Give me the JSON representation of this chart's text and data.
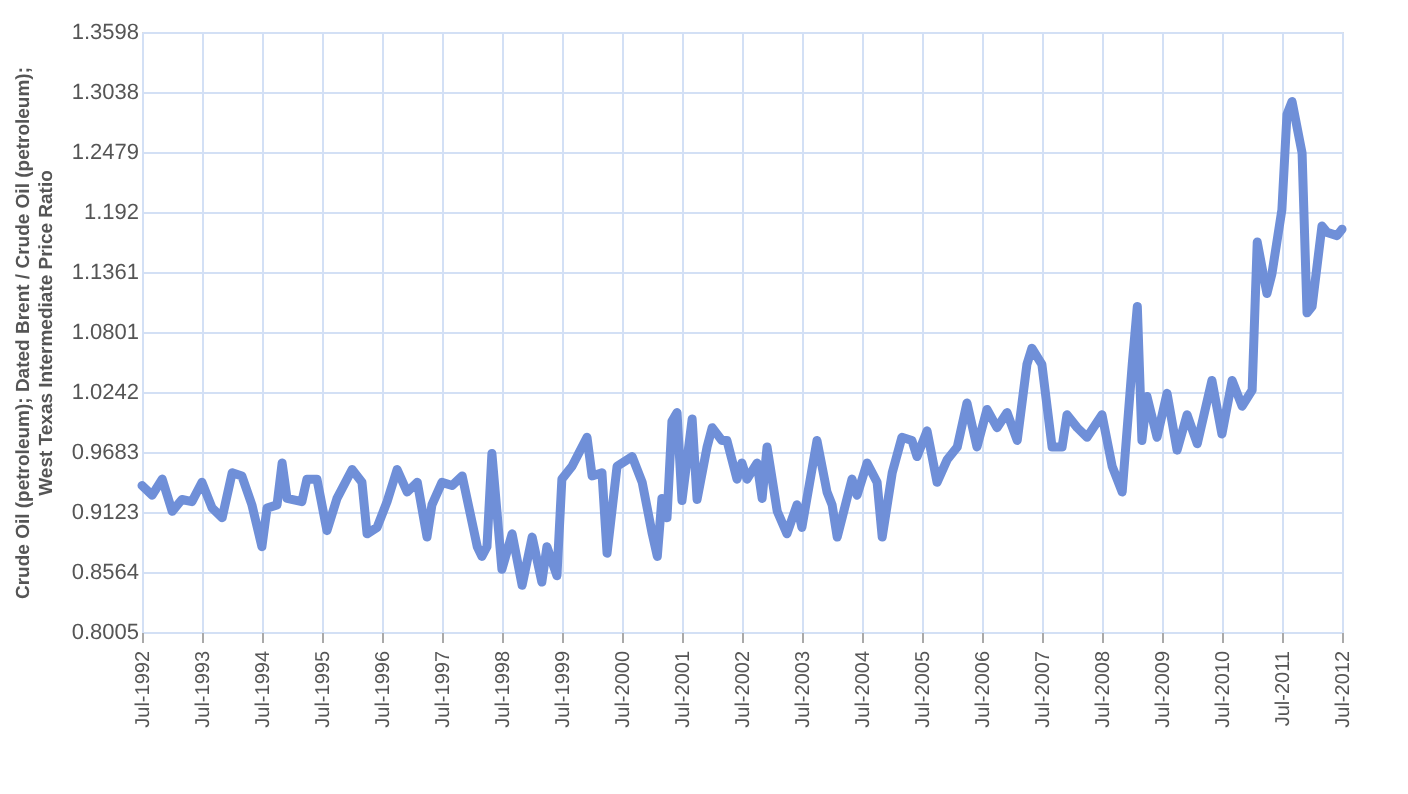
{
  "chart_data": {
    "type": "line",
    "ylabel": "Crude Oil (petroleum); Dated Brent / Crude Oil (petroleum); West Texas Intermediate Price Ratio",
    "x": [
      "1992-07",
      "1992-09",
      "1992-11",
      "1993-01",
      "1993-03",
      "1993-05",
      "1993-07",
      "1993-09",
      "1993-11",
      "1994-01",
      "1994-03",
      "1994-05",
      "1994-07",
      "1994-08",
      "1994-10",
      "1994-11",
      "1994-12",
      "1995-03",
      "1995-04",
      "1995-06",
      "1995-08",
      "1995-10",
      "1996-01",
      "1996-03",
      "1996-04",
      "1996-06",
      "1996-08",
      "1996-10",
      "1996-12",
      "1997-02",
      "1997-04",
      "1997-05",
      "1997-07",
      "1997-09",
      "1997-11",
      "1998-02",
      "1998-03",
      "1998-04",
      "1998-05",
      "1998-07",
      "1998-09",
      "1998-11",
      "1999-01",
      "1999-03",
      "1999-04",
      "1999-06",
      "1999-07",
      "1999-09",
      "1999-12",
      "2000-01",
      "2000-03",
      "2000-04",
      "2000-06",
      "2000-09",
      "2000-11",
      "2001-01",
      "2001-02",
      "2001-03",
      "2001-04",
      "2001-05",
      "2001-06",
      "2001-07",
      "2001-09",
      "2001-10",
      "2001-12",
      "2002-01",
      "2002-03",
      "2002-04",
      "2002-06",
      "2002-07",
      "2002-08",
      "2002-10",
      "2002-11",
      "2002-12",
      "2003-02",
      "2003-04",
      "2003-06",
      "2003-07",
      "2003-10",
      "2003-12",
      "2004-01",
      "2004-02",
      "2004-04",
      "2004-05",
      "2004-06",
      "2004-08",
      "2004-10",
      "2004-11",
      "2005-01",
      "2005-03",
      "2005-05",
      "2005-06",
      "2005-08",
      "2005-10",
      "2005-12",
      "2006-02",
      "2006-04",
      "2006-06",
      "2006-08",
      "2006-10",
      "2006-12",
      "2007-02",
      "2007-04",
      "2007-05",
      "2007-07",
      "2007-09",
      "2007-11",
      "2007-12",
      "2008-02",
      "2008-04",
      "2008-07",
      "2008-09",
      "2008-11",
      "2009-01",
      "2009-02",
      "2009-03",
      "2009-04",
      "2009-06",
      "2009-08",
      "2009-10",
      "2009-12",
      "2010-02",
      "2010-05",
      "2010-07",
      "2010-09",
      "2010-11",
      "2011-01",
      "2011-02",
      "2011-04",
      "2011-05",
      "2011-07",
      "2011-08",
      "2011-09",
      "2011-11",
      "2011-12",
      "2012-01",
      "2012-03",
      "2012-04",
      "2012-06",
      "2012-07"
    ],
    "series": [
      {
        "color": "#6f8fd8",
        "values": [
          0.937,
          0.928,
          0.943,
          0.913,
          0.924,
          0.922,
          0.94,
          0.916,
          0.907,
          0.949,
          0.946,
          0.919,
          0.88,
          0.916,
          0.919,
          0.958,
          0.925,
          0.922,
          0.943,
          0.943,
          0.895,
          0.925,
          0.952,
          0.94,
          0.892,
          0.898,
          0.922,
          0.952,
          0.931,
          0.94,
          0.889,
          0.919,
          0.94,
          0.937,
          0.946,
          0.88,
          0.871,
          0.88,
          0.967,
          0.859,
          0.892,
          0.844,
          0.889,
          0.847,
          0.88,
          0.853,
          0.943,
          0.955,
          0.982,
          0.946,
          0.949,
          0.874,
          0.955,
          0.964,
          0.94,
          0.892,
          0.871,
          0.925,
          0.907,
          0.997,
          1.005,
          0.923,
          0.999,
          0.924,
          0.973,
          0.991,
          0.979,
          0.979,
          0.943,
          0.958,
          0.943,
          0.958,
          0.925,
          0.973,
          0.913,
          0.892,
          0.919,
          0.898,
          0.979,
          0.931,
          0.919,
          0.889,
          0.925,
          0.943,
          0.928,
          0.958,
          0.94,
          0.889,
          0.949,
          0.982,
          0.979,
          0.964,
          0.988,
          0.94,
          0.961,
          0.973,
          1.014,
          0.973,
          1.008,
          0.991,
          1.005,
          0.979,
          1.05,
          1.065,
          1.05,
          0.973,
          0.973,
          1.003,
          0.991,
          0.982,
          1.003,
          0.955,
          0.931,
          1.05,
          1.104,
          0.979,
          1.02,
          0.982,
          1.023,
          0.97,
          1.003,
          0.976,
          1.035,
          0.985,
          1.035,
          1.011,
          1.026,
          1.164,
          1.116,
          1.134,
          1.194,
          1.283,
          1.295,
          1.247,
          1.098,
          1.104,
          1.179,
          1.173,
          1.17,
          1.176
        ]
      }
    ],
    "xlim": [
      "1992-07",
      "2012-07"
    ],
    "xticks": [
      {
        "value": "1992-07",
        "label": "Jul-1992"
      },
      {
        "value": "1993-07",
        "label": "Jul-1993"
      },
      {
        "value": "1994-07",
        "label": "Jul-1994"
      },
      {
        "value": "1995-07",
        "label": "Jul-1995"
      },
      {
        "value": "1996-07",
        "label": "Jul-1996"
      },
      {
        "value": "1997-07",
        "label": "Jul-1997"
      },
      {
        "value": "1998-07",
        "label": "Jul-1998"
      },
      {
        "value": "1999-07",
        "label": "Jul-1999"
      },
      {
        "value": "2000-07",
        "label": "Jul-2000"
      },
      {
        "value": "2001-07",
        "label": "Jul-2001"
      },
      {
        "value": "2002-07",
        "label": "Jul-2002"
      },
      {
        "value": "2003-07",
        "label": "Jul-2003"
      },
      {
        "value": "2004-07",
        "label": "Jul-2004"
      },
      {
        "value": "2005-07",
        "label": "Jul-2005"
      },
      {
        "value": "2006-07",
        "label": "Jul-2006"
      },
      {
        "value": "2007-07",
        "label": "Jul-2007"
      },
      {
        "value": "2008-07",
        "label": "Jul-2008"
      },
      {
        "value": "2009-07",
        "label": "Jul-2009"
      },
      {
        "value": "2010-07",
        "label": "Jul-2010"
      },
      {
        "value": "2011-07",
        "label": "Jul-2011"
      },
      {
        "value": "2012-07",
        "label": "Jul-2012"
      }
    ],
    "ylim": [
      0.8005,
      1.3598
    ],
    "yticks": [
      0.8005,
      0.8564,
      0.9123,
      0.9683,
      1.0242,
      1.0801,
      1.1361,
      1.192,
      1.2479,
      1.3038,
      1.3598
    ],
    "grid": true,
    "marker": "none",
    "line_style": "solid"
  }
}
